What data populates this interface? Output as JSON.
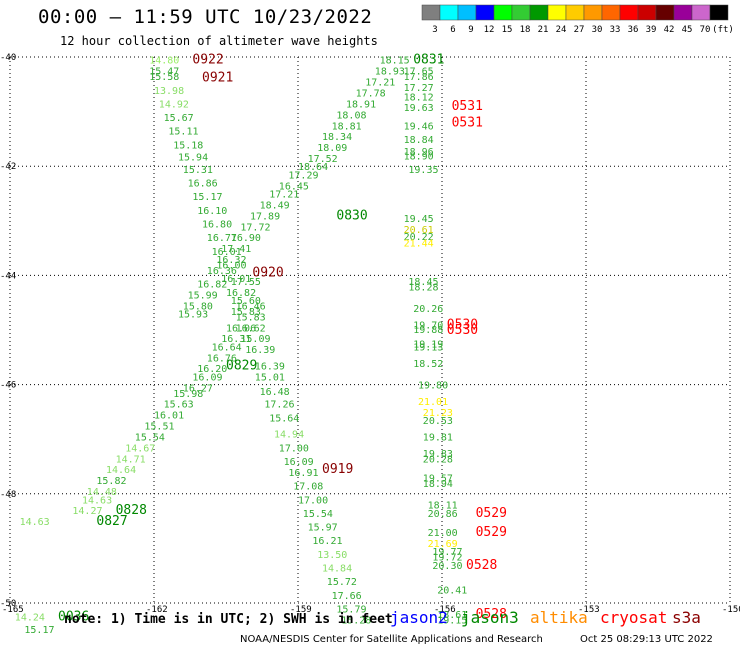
{
  "title": "00:00 – 11:59 UTC 10/23/2022",
  "subtitle": "12 hour collection of altimeter wave heights",
  "colorbar": {
    "labels": [
      "3",
      "6",
      "9",
      "12",
      "15",
      "18",
      "21",
      "24",
      "27",
      "30",
      "33",
      "36",
      "39",
      "42",
      "45",
      "70",
      "(ft)"
    ],
    "colors": [
      "#7f7f7f",
      "#00ffff",
      "#00bfff",
      "#0000ff",
      "#00ff00",
      "#33cc33",
      "#009900",
      "#ffff00",
      "#ffcc00",
      "#ff9900",
      "#ff6600",
      "#ff0000",
      "#cc0000",
      "#660000",
      "#990099",
      "#cc66cc",
      "#000000"
    ]
  },
  "footer": {
    "note": "note: 1) Time is in UTC; 2) SWH is in feet",
    "satellites": [
      {
        "name": "jason2",
        "color": "#0000ff"
      },
      {
        "name": "jason3",
        "color": "#008800"
      },
      {
        "name": "altika",
        "color": "#ff8c00"
      },
      {
        "name": "cryosat",
        "color": "#ff0000"
      },
      {
        "name": "s3a",
        "color": "#8b0000"
      }
    ],
    "credit": "NOAA/NESDIS Center for Satellite Applications and Research",
    "timestamp": "Oct 25 08:29:13 UTC 2022"
  },
  "chart_data": {
    "type": "scatter",
    "title": "12 hour collection of altimeter wave heights",
    "xlabel": "",
    "ylabel": "",
    "xlim": [
      -165,
      -150
    ],
    "ylim": [
      -50,
      -40
    ],
    "x_ticks": [
      "-165",
      "-162",
      "-159",
      "-156",
      "-153",
      "-150"
    ],
    "y_ticks": [
      "-40",
      "-42",
      "-44",
      "-46",
      "-48",
      "-50"
    ],
    "grid": true,
    "points": [
      {
        "lon": -162.1,
        "lat": -40.05,
        "v": "14.80",
        "c": "#99ee66"
      },
      {
        "lon": -161.2,
        "lat": -40.05,
        "v": "0922",
        "c": "#880000"
      },
      {
        "lon": -162.1,
        "lat": -40.25,
        "v": "15.47",
        "c": "#33aa33"
      },
      {
        "lon": -162.1,
        "lat": -40.35,
        "v": "15.58",
        "c": "#33aa33"
      },
      {
        "lon": -161.0,
        "lat": -40.38,
        "v": "0921",
        "c": "#880000"
      },
      {
        "lon": -162.0,
        "lat": -40.6,
        "v": "13.98",
        "c": "#88dd66"
      },
      {
        "lon": -161.9,
        "lat": -40.85,
        "v": "14.92",
        "c": "#88dd66"
      },
      {
        "lon": -161.8,
        "lat": -41.1,
        "v": "15.67",
        "c": "#33aa33"
      },
      {
        "lon": -161.7,
        "lat": -41.35,
        "v": "15.11",
        "c": "#33aa33"
      },
      {
        "lon": -161.6,
        "lat": -41.6,
        "v": "15.18",
        "c": "#33aa33"
      },
      {
        "lon": -161.5,
        "lat": -41.82,
        "v": "15.94",
        "c": "#33aa33"
      },
      {
        "lon": -161.4,
        "lat": -42.05,
        "v": "15.31",
        "c": "#33aa33"
      },
      {
        "lon": -161.3,
        "lat": -42.3,
        "v": "16.86",
        "c": "#33aa33"
      },
      {
        "lon": -161.2,
        "lat": -42.55,
        "v": "15.17",
        "c": "#33aa33"
      },
      {
        "lon": -161.1,
        "lat": -42.8,
        "v": "16.10",
        "c": "#33aa33"
      },
      {
        "lon": -161.0,
        "lat": -43.05,
        "v": "16.80",
        "c": "#33aa33"
      },
      {
        "lon": -160.9,
        "lat": -43.3,
        "v": "16.77",
        "c": "#33aa33"
      },
      {
        "lon": -160.8,
        "lat": -43.55,
        "v": "16.01",
        "c": "#33aa33"
      },
      {
        "lon": -160.7,
        "lat": -43.8,
        "v": "16.00",
        "c": "#33aa33"
      },
      {
        "lon": -160.6,
        "lat": -44.05,
        "v": "16.01",
        "c": "#33aa33"
      },
      {
        "lon": -159.95,
        "lat": -43.95,
        "v": "0920",
        "c": "#880000"
      },
      {
        "lon": -160.4,
        "lat": -44.1,
        "v": "17.55",
        "c": "#33aa33"
      },
      {
        "lon": -160.5,
        "lat": -44.3,
        "v": "16.82",
        "c": "#33aa33"
      },
      {
        "lon": -160.4,
        "lat": -44.45,
        "v": "15.60",
        "c": "#33aa33"
      },
      {
        "lon": -160.3,
        "lat": -44.55,
        "v": "16.46",
        "c": "#33aa33"
      },
      {
        "lon": -160.4,
        "lat": -44.65,
        "v": "15.83",
        "c": "#33aa33"
      },
      {
        "lon": -160.3,
        "lat": -44.75,
        "v": "15.83",
        "c": "#33aa33"
      },
      {
        "lon": -160.5,
        "lat": -44.95,
        "v": "16.06",
        "c": "#33aa33"
      },
      {
        "lon": -160.3,
        "lat": -44.95,
        "v": "16.62",
        "c": "#33aa33"
      },
      {
        "lon": -160.6,
        "lat": -45.15,
        "v": "16.31",
        "c": "#33aa33"
      },
      {
        "lon": -160.2,
        "lat": -45.15,
        "v": "15.09",
        "c": "#33aa33"
      },
      {
        "lon": -160.8,
        "lat": -45.3,
        "v": "16.64",
        "c": "#33aa33"
      },
      {
        "lon": -160.1,
        "lat": -45.35,
        "v": "16.39",
        "c": "#33aa33"
      },
      {
        "lon": -160.9,
        "lat": -45.5,
        "v": "16.76",
        "c": "#33aa33"
      },
      {
        "lon": -161.1,
        "lat": -45.7,
        "v": "16.20",
        "c": "#33aa33"
      },
      {
        "lon": -160.5,
        "lat": -45.65,
        "v": "0829",
        "c": "#008800"
      },
      {
        "lon": -159.9,
        "lat": -45.65,
        "v": "16.39",
        "c": "#33aa33"
      },
      {
        "lon": -161.2,
        "lat": -45.85,
        "v": "16.09",
        "c": "#33aa33"
      },
      {
        "lon": -159.9,
        "lat": -45.85,
        "v": "15.01",
        "c": "#33aa33"
      },
      {
        "lon": -161.4,
        "lat": -46.05,
        "v": "16.27",
        "c": "#33aa33"
      },
      {
        "lon": -161.6,
        "lat": -46.15,
        "v": "15.98",
        "c": "#33aa33"
      },
      {
        "lon": -159.8,
        "lat": -46.12,
        "v": "16.48",
        "c": "#33aa33"
      },
      {
        "lon": -161.8,
        "lat": -46.35,
        "v": "15.63",
        "c": "#33aa33"
      },
      {
        "lon": -159.7,
        "lat": -46.35,
        "v": "17.26",
        "c": "#33aa33"
      },
      {
        "lon": -162.0,
        "lat": -46.55,
        "v": "16.01",
        "c": "#33aa33"
      },
      {
        "lon": -159.6,
        "lat": -46.6,
        "v": "15.64",
        "c": "#33aa33"
      },
      {
        "lon": -162.2,
        "lat": -46.75,
        "v": "15.51",
        "c": "#33aa33"
      },
      {
        "lon": -159.5,
        "lat": -46.9,
        "v": "14.94",
        "c": "#88dd66"
      },
      {
        "lon": -162.4,
        "lat": -46.95,
        "v": "15.54",
        "c": "#33aa33"
      },
      {
        "lon": -162.6,
        "lat": -47.15,
        "v": "14.67",
        "c": "#88dd66"
      },
      {
        "lon": -159.4,
        "lat": -47.15,
        "v": "17.00",
        "c": "#33aa33"
      },
      {
        "lon": -162.8,
        "lat": -47.35,
        "v": "14.71",
        "c": "#88dd66"
      },
      {
        "lon": -159.3,
        "lat": -47.4,
        "v": "16.09",
        "c": "#33aa33"
      },
      {
        "lon": -163.0,
        "lat": -47.55,
        "v": "14.64",
        "c": "#88dd66"
      },
      {
        "lon": -159.2,
        "lat": -47.6,
        "v": "16.91",
        "c": "#33aa33"
      },
      {
        "lon": -158.5,
        "lat": -47.55,
        "v": "0919",
        "c": "#880000"
      },
      {
        "lon": -163.2,
        "lat": -47.75,
        "v": "15.82",
        "c": "#33aa33"
      },
      {
        "lon": -159.1,
        "lat": -47.85,
        "v": "17.08",
        "c": "#33aa33"
      },
      {
        "lon": -163.4,
        "lat": -47.95,
        "v": "14.48",
        "c": "#88dd66"
      },
      {
        "lon": -163.5,
        "lat": -48.1,
        "v": "14.63",
        "c": "#88dd66"
      },
      {
        "lon": -159.0,
        "lat": -48.1,
        "v": "17.00",
        "c": "#33aa33"
      },
      {
        "lon": -163.7,
        "lat": -48.3,
        "v": "14.27",
        "c": "#88dd66"
      },
      {
        "lon": -162.8,
        "lat": -48.3,
        "v": "0828",
        "c": "#008800"
      },
      {
        "lon": -164.8,
        "lat": -48.5,
        "v": "14.63",
        "c": "#88dd66"
      },
      {
        "lon": -163.2,
        "lat": -48.5,
        "v": "0827",
        "c": "#008800"
      },
      {
        "lon": -158.9,
        "lat": -48.35,
        "v": "15.54",
        "c": "#33aa33"
      },
      {
        "lon": -158.8,
        "lat": -48.6,
        "v": "15.97",
        "c": "#33aa33"
      },
      {
        "lon": -158.7,
        "lat": -48.85,
        "v": "16.21",
        "c": "#33aa33"
      },
      {
        "lon": -158.6,
        "lat": -49.1,
        "v": "13.50",
        "c": "#88dd66"
      },
      {
        "lon": -158.5,
        "lat": -49.35,
        "v": "14.84",
        "c": "#88dd66"
      },
      {
        "lon": -158.4,
        "lat": -49.6,
        "v": "15.72",
        "c": "#33aa33"
      },
      {
        "lon": -158.3,
        "lat": -49.85,
        "v": "17.66",
        "c": "#33aa33"
      },
      {
        "lon": -158.2,
        "lat": -50.1,
        "v": "15.79",
        "c": "#33aa33"
      },
      {
        "lon": -158.1,
        "lat": -50.3,
        "v": "15.28",
        "c": "#33aa33"
      },
      {
        "lon": -164.9,
        "lat": -50.25,
        "v": "14.24",
        "c": "#88dd66"
      },
      {
        "lon": -164.0,
        "lat": -50.25,
        "v": "0036",
        "c": "#008800"
      },
      {
        "lon": -164.7,
        "lat": -50.48,
        "v": "15.17",
        "c": "#33aa33"
      },
      {
        "lon": -157.3,
        "lat": -40.05,
        "v": "18.15",
        "c": "#33aa33"
      },
      {
        "lon": -156.6,
        "lat": -40.05,
        "v": "0831",
        "c": "#008800"
      },
      {
        "lon": -157.4,
        "lat": -40.25,
        "v": "18.93",
        "c": "#33aa33"
      },
      {
        "lon": -156.8,
        "lat": -40.25,
        "v": "17.65",
        "c": "#33aa33"
      },
      {
        "lon": -156.8,
        "lat": -40.35,
        "v": "17.86",
        "c": "#33aa33"
      },
      {
        "lon": -157.6,
        "lat": -40.45,
        "v": "17.21",
        "c": "#33aa33"
      },
      {
        "lon": -157.8,
        "lat": -40.65,
        "v": "17.78",
        "c": "#33aa33"
      },
      {
        "lon": -156.8,
        "lat": -40.55,
        "v": "17.27",
        "c": "#33aa33"
      },
      {
        "lon": -156.8,
        "lat": -40.72,
        "v": "18.12",
        "c": "#33aa33"
      },
      {
        "lon": -158.0,
        "lat": -40.85,
        "v": "18.91",
        "c": "#33aa33"
      },
      {
        "lon": -156.8,
        "lat": -40.92,
        "v": "19.63",
        "c": "#33aa33"
      },
      {
        "lon": -155.8,
        "lat": -40.9,
        "v": "0531",
        "c": "#ff0000"
      },
      {
        "lon": -158.2,
        "lat": -41.05,
        "v": "18.08",
        "c": "#33aa33"
      },
      {
        "lon": -158.3,
        "lat": -41.25,
        "v": "18.81",
        "c": "#33aa33"
      },
      {
        "lon": -156.8,
        "lat": -41.25,
        "v": "19.46",
        "c": "#33aa33"
      },
      {
        "lon": -155.8,
        "lat": -41.2,
        "v": "0531",
        "c": "#ff0000"
      },
      {
        "lon": -158.5,
        "lat": -41.45,
        "v": "18.34",
        "c": "#33aa33"
      },
      {
        "lon": -156.8,
        "lat": -41.5,
        "v": "18.84",
        "c": "#33aa33"
      },
      {
        "lon": -158.6,
        "lat": -41.65,
        "v": "18.09",
        "c": "#33aa33"
      },
      {
        "lon": -156.8,
        "lat": -41.72,
        "v": "18.96",
        "c": "#33aa33"
      },
      {
        "lon": -156.8,
        "lat": -41.8,
        "v": "18.90",
        "c": "#33aa33"
      },
      {
        "lon": -158.8,
        "lat": -41.85,
        "v": "17.52",
        "c": "#33aa33"
      },
      {
        "lon": -159.0,
        "lat": -42.0,
        "v": "18.64",
        "c": "#33aa33"
      },
      {
        "lon": -156.7,
        "lat": -42.05,
        "v": "19.35",
        "c": "#33aa33"
      },
      {
        "lon": -159.2,
        "lat": -42.15,
        "v": "17.29",
        "c": "#33aa33"
      },
      {
        "lon": -159.4,
        "lat": -42.35,
        "v": "16.45",
        "c": "#33aa33"
      },
      {
        "lon": -159.6,
        "lat": -42.5,
        "v": "17.21",
        "c": "#33aa33"
      },
      {
        "lon": -159.8,
        "lat": -42.7,
        "v": "18.49",
        "c": "#33aa33"
      },
      {
        "lon": -160.0,
        "lat": -42.9,
        "v": "17.89",
        "c": "#33aa33"
      },
      {
        "lon": -158.2,
        "lat": -42.9,
        "v": "0830",
        "c": "#008800"
      },
      {
        "lon": -160.2,
        "lat": -43.1,
        "v": "17.72",
        "c": "#33aa33"
      },
      {
        "lon": -160.4,
        "lat": -43.3,
        "v": "16.90",
        "c": "#33aa33"
      },
      {
        "lon": -160.6,
        "lat": -43.5,
        "v": "17.41",
        "c": "#33aa33"
      },
      {
        "lon": -160.7,
        "lat": -43.7,
        "v": "16.32",
        "c": "#33aa33"
      },
      {
        "lon": -160.9,
        "lat": -43.9,
        "v": "16.36",
        "c": "#33aa33"
      },
      {
        "lon": -161.1,
        "lat": -44.15,
        "v": "16.82",
        "c": "#33aa33"
      },
      {
        "lon": -161.3,
        "lat": -44.35,
        "v": "15.99",
        "c": "#33aa33"
      },
      {
        "lon": -161.4,
        "lat": -44.55,
        "v": "15.80",
        "c": "#33aa33"
      },
      {
        "lon": -161.5,
        "lat": -44.7,
        "v": "15.93",
        "c": "#33aa33"
      },
      {
        "lon": -156.8,
        "lat": -42.95,
        "v": "19.45",
        "c": "#33aa33"
      },
      {
        "lon": -156.8,
        "lat": -43.15,
        "v": "20.61",
        "c": "#cccc00"
      },
      {
        "lon": -156.8,
        "lat": -43.28,
        "v": "20.22",
        "c": "#33aa33"
      },
      {
        "lon": -156.8,
        "lat": -43.4,
        "v": "21.44",
        "c": "#ffee00"
      },
      {
        "lon": -156.7,
        "lat": -44.1,
        "v": "18.45",
        "c": "#33aa33"
      },
      {
        "lon": -156.7,
        "lat": -44.2,
        "v": "18.28",
        "c": "#33aa33"
      },
      {
        "lon": -156.6,
        "lat": -44.6,
        "v": "20.26",
        "c": "#33aa33"
      },
      {
        "lon": -156.6,
        "lat": -44.9,
        "v": "19.70",
        "c": "#33aa33"
      },
      {
        "lon": -156.6,
        "lat": -44.98,
        "v": "19.88",
        "c": "#33aa33"
      },
      {
        "lon": -155.9,
        "lat": -44.9,
        "v": "0530",
        "c": "#ff0000"
      },
      {
        "lon": -155.9,
        "lat": -45.0,
        "v": "0530",
        "c": "#ff0000"
      },
      {
        "lon": -156.6,
        "lat": -45.25,
        "v": "19.19",
        "c": "#33aa33"
      },
      {
        "lon": -156.6,
        "lat": -45.3,
        "v": "19.13",
        "c": "#33aa33"
      },
      {
        "lon": -156.6,
        "lat": -45.6,
        "v": "18.52",
        "c": "#33aa33"
      },
      {
        "lon": -156.5,
        "lat": -46.0,
        "v": "19.80",
        "c": "#33aa33"
      },
      {
        "lon": -156.5,
        "lat": -46.3,
        "v": "21.01",
        "c": "#ffee00"
      },
      {
        "lon": -156.4,
        "lat": -46.5,
        "v": "21.23",
        "c": "#ffee00"
      },
      {
        "lon": -156.4,
        "lat": -46.65,
        "v": "20.53",
        "c": "#33aa33"
      },
      {
        "lon": -156.4,
        "lat": -46.95,
        "v": "19.81",
        "c": "#33aa33"
      },
      {
        "lon": -156.4,
        "lat": -47.25,
        "v": "19.83",
        "c": "#33aa33"
      },
      {
        "lon": -156.4,
        "lat": -47.35,
        "v": "20.28",
        "c": "#33aa33"
      },
      {
        "lon": -156.4,
        "lat": -47.7,
        "v": "19.57",
        "c": "#33aa33"
      },
      {
        "lon": -156.4,
        "lat": -47.8,
        "v": "18.94",
        "c": "#33aa33"
      },
      {
        "lon": -156.3,
        "lat": -48.2,
        "v": "18.11",
        "c": "#33aa33"
      },
      {
        "lon": -156.3,
        "lat": -48.35,
        "v": "20.86",
        "c": "#33aa33"
      },
      {
        "lon": -155.3,
        "lat": -48.35,
        "v": "0529",
        "c": "#ff0000"
      },
      {
        "lon": -156.3,
        "lat": -48.7,
        "v": "21.00",
        "c": "#33aa33"
      },
      {
        "lon": -155.3,
        "lat": -48.7,
        "v": "0529",
        "c": "#ff0000"
      },
      {
        "lon": -156.3,
        "lat": -48.9,
        "v": "21.69",
        "c": "#ffee00"
      },
      {
        "lon": -156.2,
        "lat": -49.05,
        "v": "19.77",
        "c": "#33aa33"
      },
      {
        "lon": -156.2,
        "lat": -49.15,
        "v": "19.72",
        "c": "#33aa33"
      },
      {
        "lon": -156.2,
        "lat": -49.3,
        "v": "20.30",
        "c": "#33aa33"
      },
      {
        "lon": -155.5,
        "lat": -49.3,
        "v": "0528",
        "c": "#ff0000"
      },
      {
        "lon": -156.1,
        "lat": -49.75,
        "v": "20.41",
        "c": "#33aa33"
      },
      {
        "lon": -156.1,
        "lat": -50.2,
        "v": "18.61",
        "c": "#33aa33"
      },
      {
        "lon": -156.1,
        "lat": -50.3,
        "v": "19.15",
        "c": "#33aa33"
      },
      {
        "lon": -155.3,
        "lat": -50.2,
        "v": "0528",
        "c": "#ff0000"
      }
    ]
  }
}
